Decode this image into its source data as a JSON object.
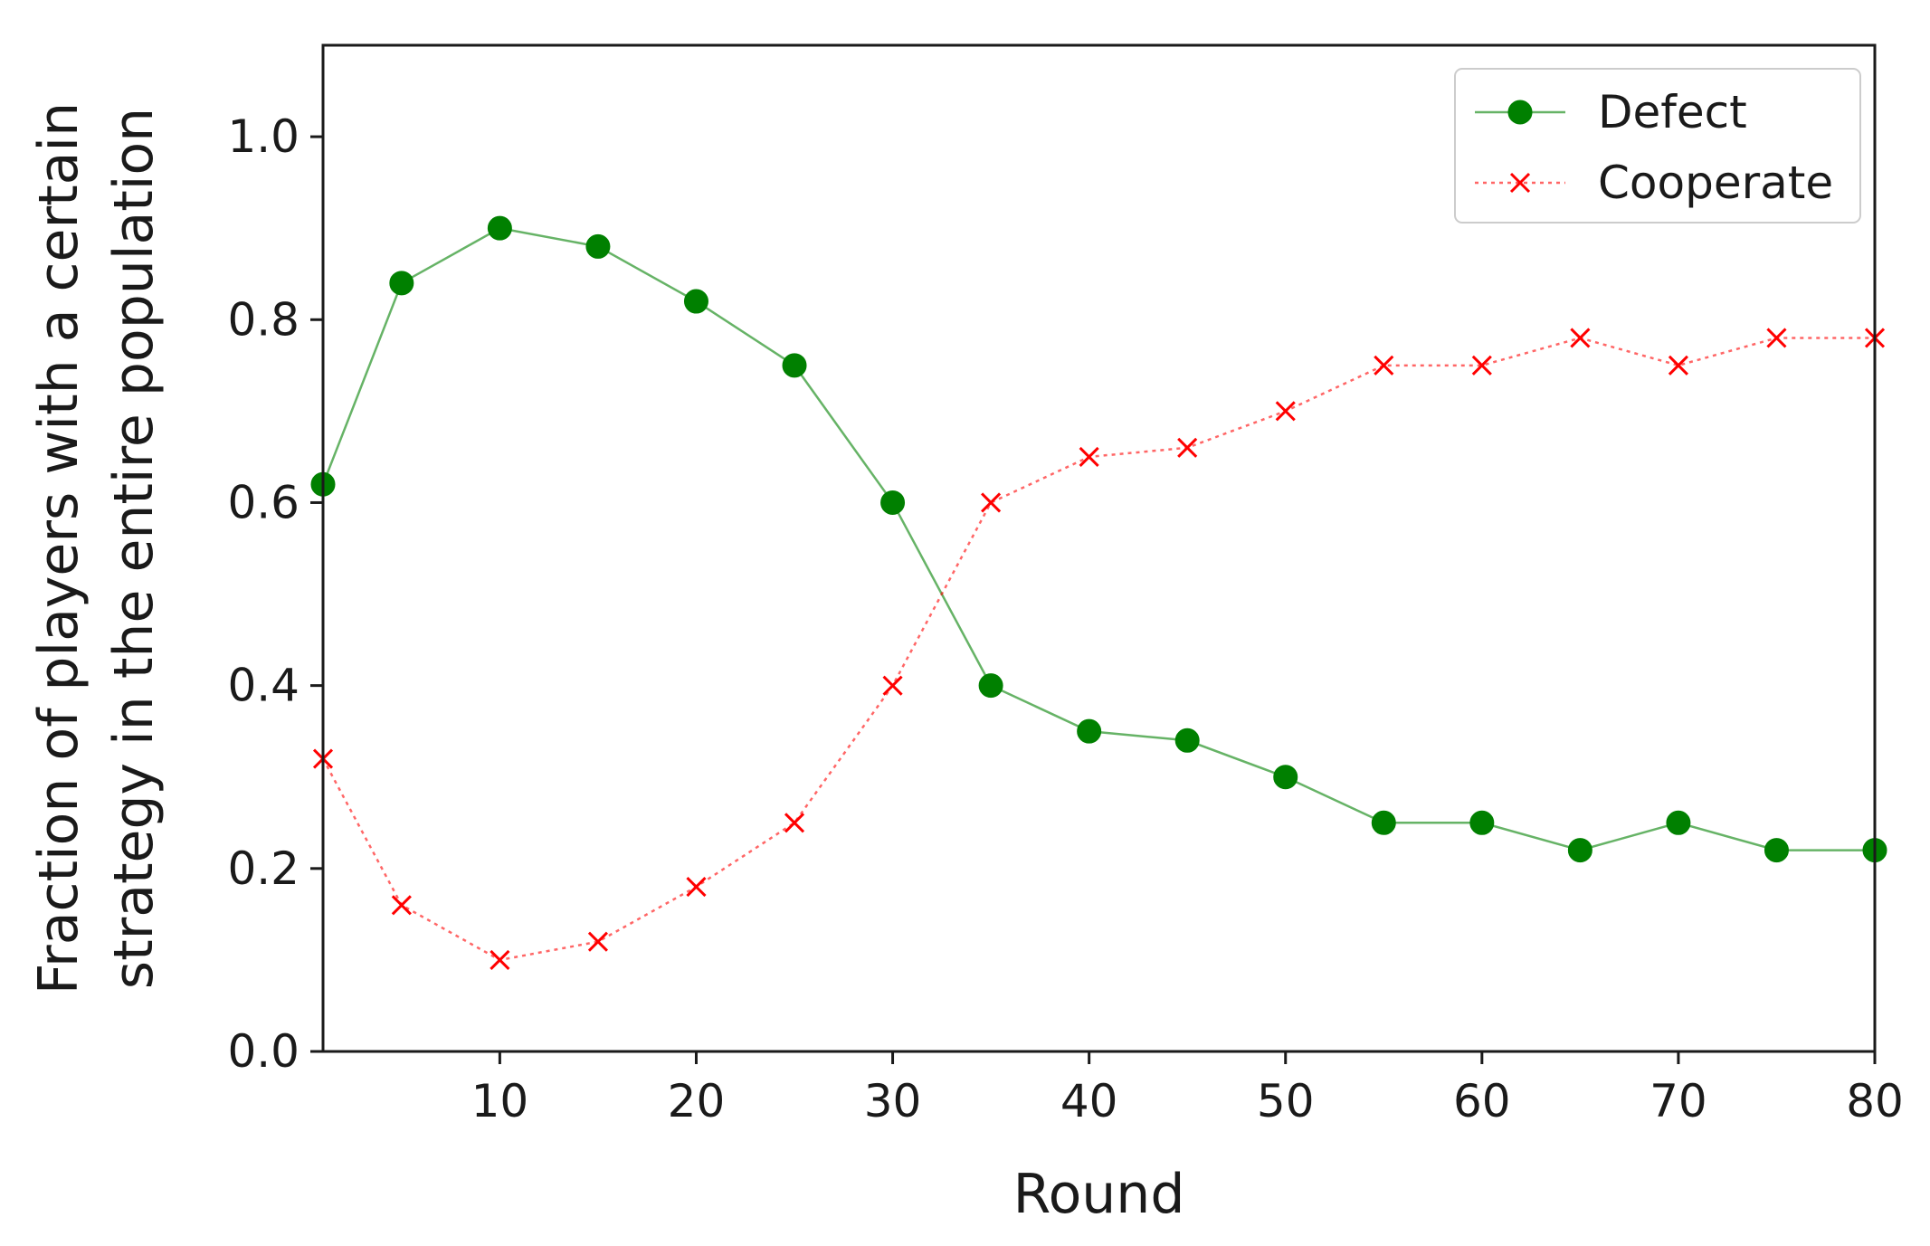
{
  "chart_data": {
    "type": "line",
    "title": "",
    "xlabel": "Round",
    "ylabel": [
      "Fraction of players with a certain",
      "strategy in the entire population"
    ],
    "xlim": [
      1,
      80
    ],
    "ylim": [
      0,
      1.1
    ],
    "xticks": [
      10,
      20,
      30,
      40,
      50,
      60,
      70,
      80
    ],
    "yticks": [
      0.0,
      0.2,
      0.4,
      0.6,
      0.8,
      1.0
    ],
    "ytick_labels": [
      "0.0",
      "0.2",
      "0.4",
      "0.6",
      "0.8",
      "1.0"
    ],
    "grid": false,
    "legend_position": "top-right",
    "x": [
      1,
      5,
      10,
      15,
      20,
      25,
      30,
      35,
      40,
      45,
      50,
      55,
      60,
      65,
      70,
      75,
      80
    ],
    "series": [
      {
        "name": "Defect",
        "color": "#008000",
        "line_style": "solid",
        "marker": "circle",
        "values": [
          0.62,
          0.84,
          0.9,
          0.88,
          0.82,
          0.75,
          0.6,
          0.4,
          0.35,
          0.34,
          0.3,
          0.25,
          0.25,
          0.22,
          0.25,
          0.22,
          0.22
        ]
      },
      {
        "name": "Cooperate",
        "color": "#ff0000",
        "line_style": "dotted",
        "marker": "x",
        "values": [
          0.32,
          0.16,
          0.1,
          0.12,
          0.18,
          0.25,
          0.4,
          0.6,
          0.65,
          0.66,
          0.7,
          0.75,
          0.75,
          0.78,
          0.75,
          0.78,
          0.78
        ]
      }
    ]
  }
}
